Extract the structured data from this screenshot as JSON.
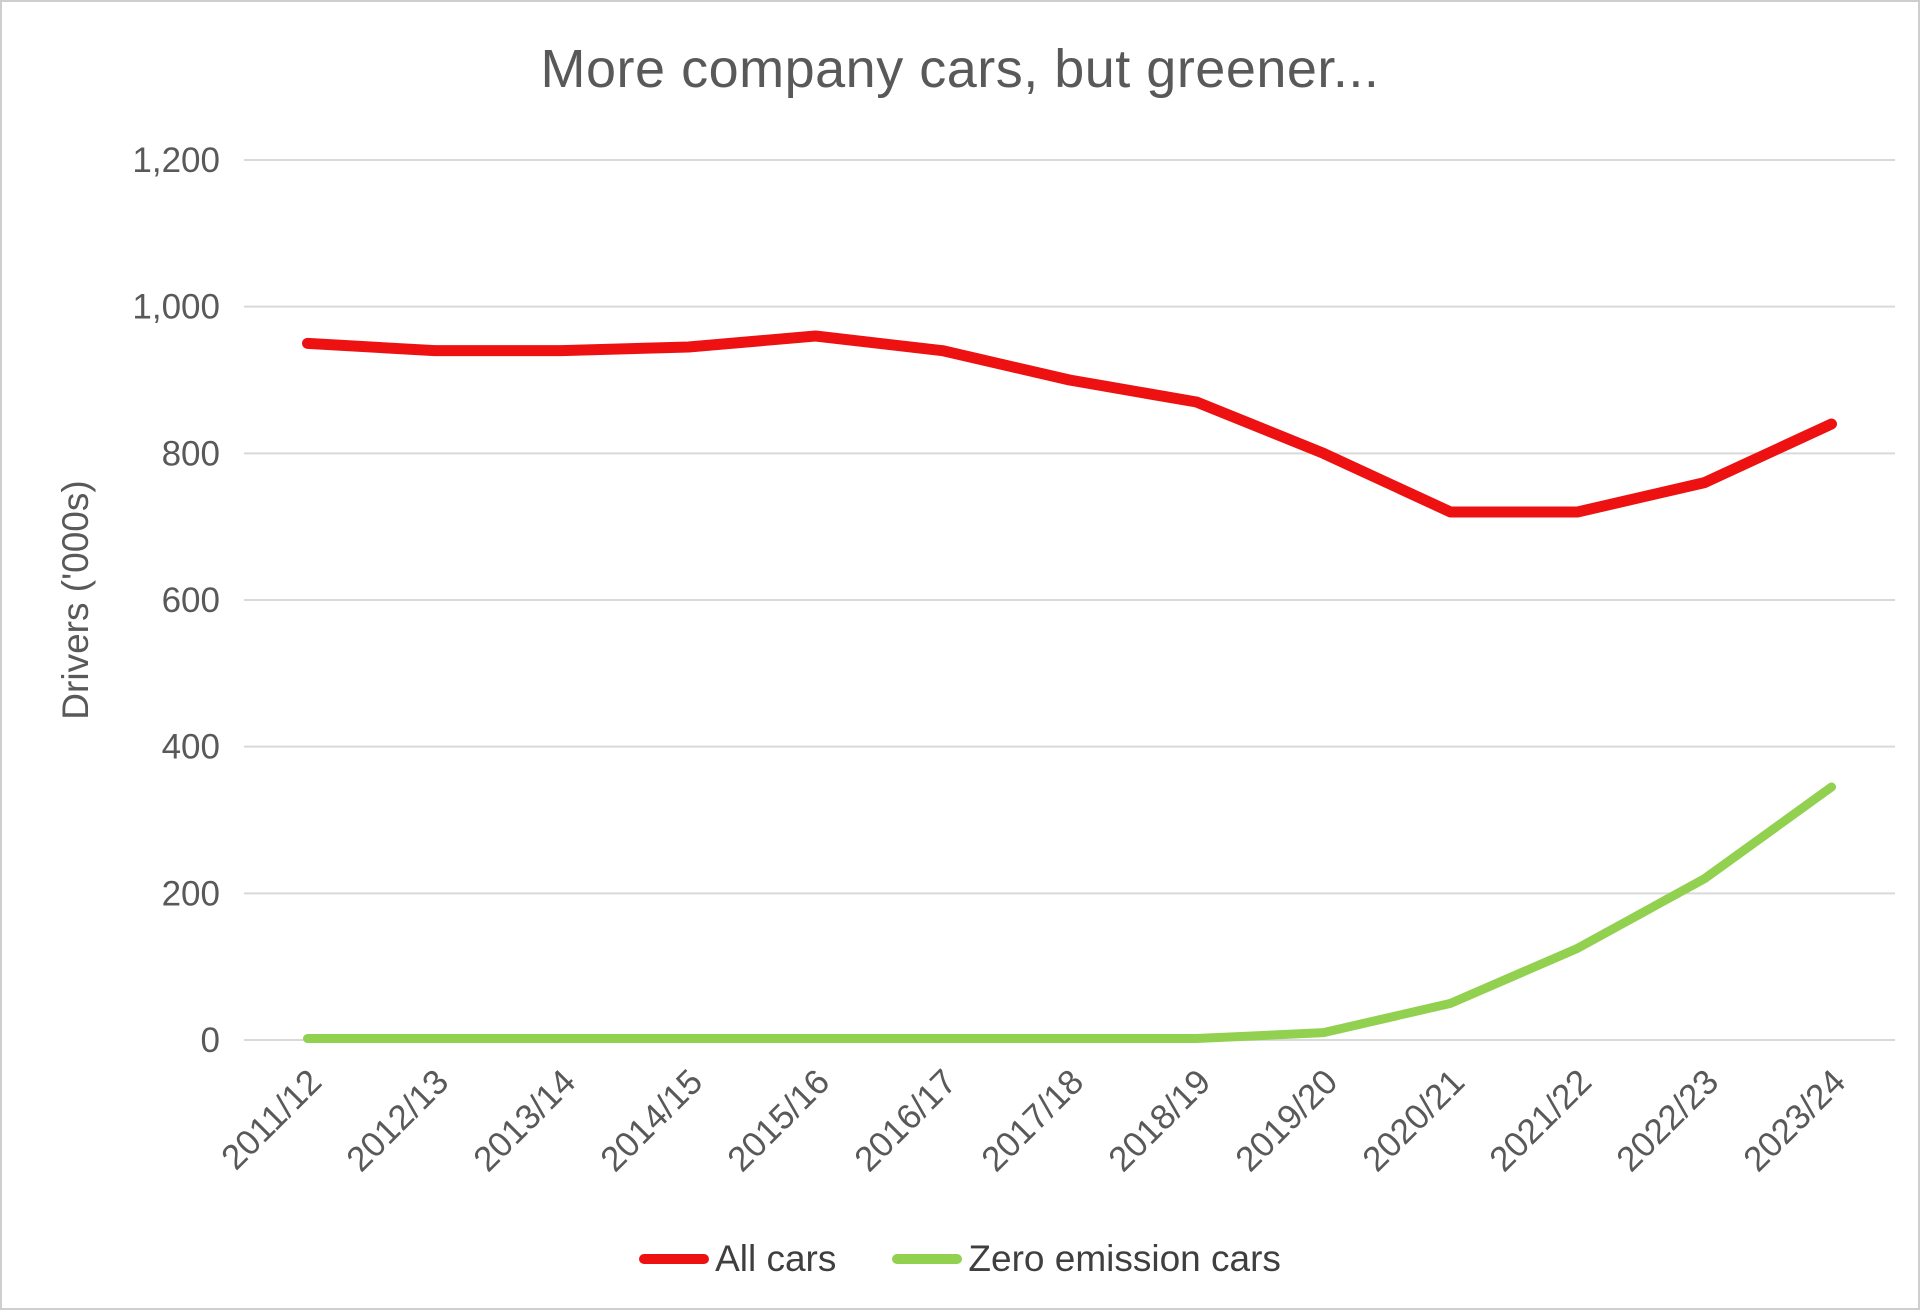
{
  "chart_data": {
    "type": "line",
    "title": "More company cars, but greener...",
    "xlabel": "",
    "ylabel": "Drivers  ('000s)",
    "categories": [
      "2011/12",
      "2012/13",
      "2013/14",
      "2014/15",
      "2015/16",
      "2016/17",
      "2017/18",
      "2018/19",
      "2019/20",
      "2020/21",
      "2021/22",
      "2022/23",
      "2023/24"
    ],
    "series": [
      {
        "name": "All cars",
        "color": "#ee1111",
        "values": [
          950,
          940,
          940,
          945,
          960,
          940,
          900,
          870,
          800,
          720,
          720,
          760,
          840
        ]
      },
      {
        "name": "Zero emission cars",
        "color": "#92d050",
        "values": [
          2,
          2,
          2,
          2,
          2,
          2,
          2,
          2,
          10,
          50,
          125,
          220,
          345
        ]
      }
    ],
    "ylim": [
      0,
      1200
    ],
    "ytick_interval": 200,
    "ytick_labels": [
      "0",
      "200",
      "400",
      "600",
      "800",
      "1,000",
      "1,200"
    ],
    "grid": true,
    "legend_position": "bottom"
  },
  "colors": {
    "title": "#595959",
    "axis_text": "#595959",
    "gridline": "#d9d9d9",
    "background": "#ffffff",
    "border": "#cfcdcd",
    "legend_text": "#3f3f3f"
  }
}
